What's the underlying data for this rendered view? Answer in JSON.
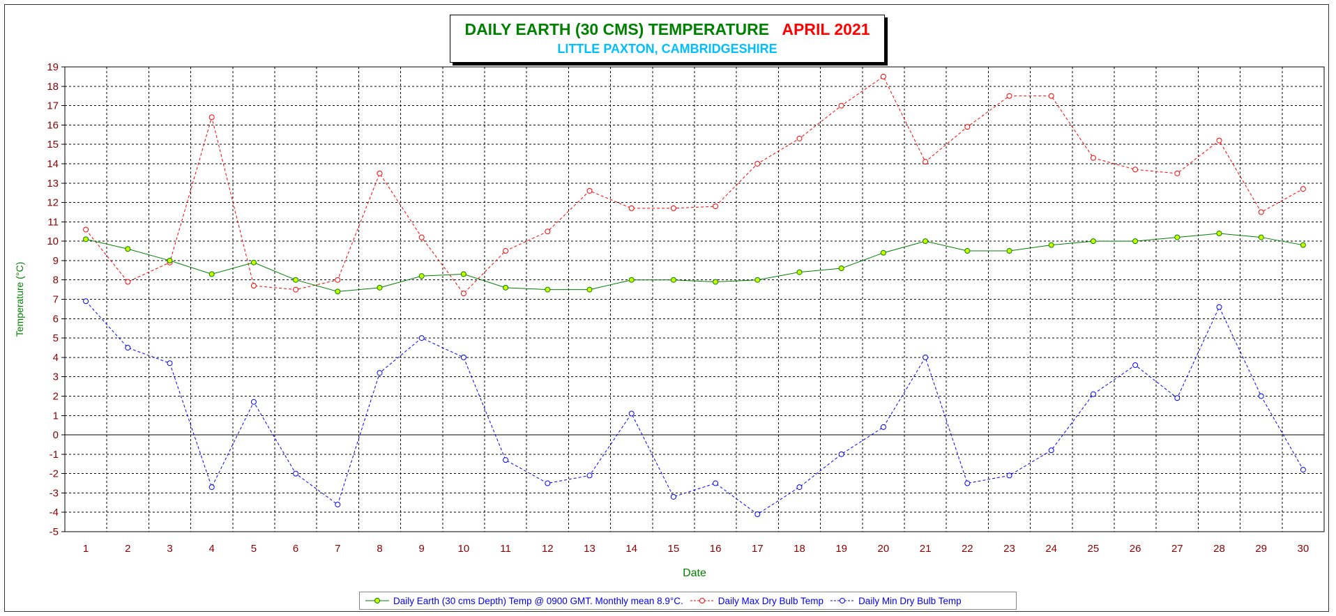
{
  "title": {
    "main": "DAILY EARTH (30 CMS) TEMPERATURE",
    "date": "APRIL 2021",
    "subtitle": "LITTLE PAXTON, CAMBRIDGESHIRE"
  },
  "colors": {
    "earth": "#008000",
    "earth_marker": "#ccff00",
    "max": "#ff0000",
    "min": "#0000ff",
    "tick_label": "#8b0000",
    "axis_title": "#008000"
  },
  "chart_data": {
    "type": "line",
    "xlabel": "Date",
    "ylabel": "Temperature (°C)",
    "x": [
      1,
      2,
      3,
      4,
      5,
      6,
      7,
      8,
      9,
      10,
      11,
      12,
      13,
      14,
      15,
      16,
      17,
      18,
      19,
      20,
      21,
      22,
      23,
      24,
      25,
      26,
      27,
      28,
      29,
      30
    ],
    "ylim": [
      -5,
      19
    ],
    "yticks": [
      19,
      18,
      17,
      16,
      15,
      14,
      13,
      12,
      11,
      10,
      9,
      8,
      7,
      6,
      5,
      4,
      3,
      2,
      1,
      0,
      -1,
      -2,
      -3,
      -4,
      -5
    ],
    "grid": true,
    "legend_position": "bottom",
    "series": [
      {
        "name": "Daily Earth (30 cms Depth) Temp @ 0900 GMT. Monthly mean 8.9°C.",
        "style": "solid",
        "values": [
          10.1,
          9.6,
          9.0,
          8.3,
          8.9,
          8.0,
          7.4,
          7.6,
          8.2,
          8.3,
          7.6,
          7.5,
          7.5,
          8.0,
          8.0,
          7.9,
          8.0,
          8.4,
          8.6,
          9.4,
          10.0,
          9.5,
          9.5,
          9.8,
          10.0,
          10.0,
          10.2,
          10.4,
          10.2,
          9.8
        ]
      },
      {
        "name": "Daily Max Dry Bulb Temp",
        "style": "dashed",
        "values": [
          10.6,
          7.9,
          8.9,
          16.4,
          7.7,
          7.5,
          8.0,
          13.5,
          10.2,
          7.3,
          9.5,
          10.5,
          12.6,
          11.7,
          11.7,
          11.8,
          14.0,
          15.3,
          17.0,
          18.5,
          14.1,
          15.9,
          17.5,
          17.5,
          14.3,
          13.7,
          13.5,
          15.2,
          11.5,
          12.7
        ]
      },
      {
        "name": "Daily Min Dry Bulb Temp",
        "style": "dashed",
        "values": [
          6.9,
          4.5,
          3.7,
          -2.7,
          1.7,
          -2.0,
          -3.6,
          3.2,
          5.0,
          4.0,
          -1.3,
          -2.5,
          -2.1,
          1.1,
          -3.2,
          -2.5,
          -4.1,
          -2.7,
          -1.0,
          0.4,
          4.0,
          -2.5,
          -2.1,
          -0.8,
          2.1,
          3.6,
          1.9,
          6.6,
          2.0,
          -1.8
        ]
      }
    ]
  }
}
